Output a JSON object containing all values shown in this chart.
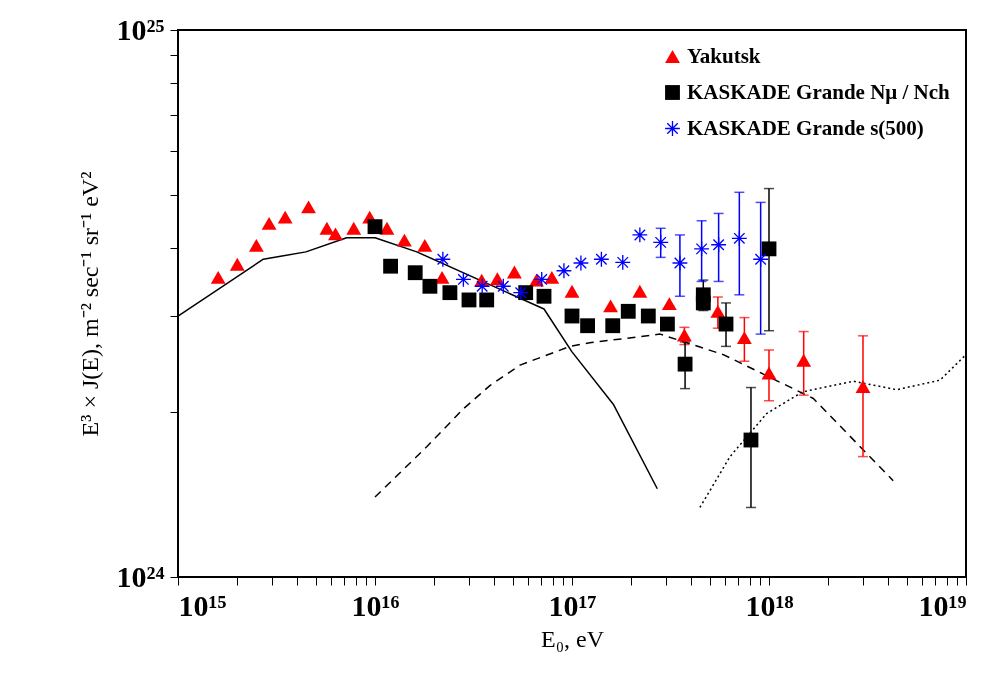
{
  "chart_data": {
    "type": "scatter",
    "xlabel": "E₀,   eV",
    "ylabel": "E³ × J(E),   m⁻² sec⁻¹ sr⁻¹ eV²",
    "log": "xy",
    "grid": false,
    "legend": "top right",
    "xlim": [
      1000000000000000.0,
      1e+19
    ],
    "ylim": [
      1e+24,
      1e+25
    ],
    "xticks": [
      {
        "value": 1000000000000000.0,
        "label": "10¹⁵"
      },
      {
        "value": 2000000000000000.0,
        "label": null
      },
      {
        "value": 3000000000000000.0,
        "label": null
      },
      {
        "value": 4000000000000000.0,
        "label": null
      },
      {
        "value": 5000000000000000.0,
        "label": null
      },
      {
        "value": 6000000000000000.0,
        "label": null
      },
      {
        "value": 7000000000000000.0,
        "label": null
      },
      {
        "value": 8000000000000000.0,
        "label": null
      },
      {
        "value": 9000000000000000.0,
        "label": null
      },
      {
        "value": 1e+16,
        "label": "10¹⁶"
      },
      {
        "value": 2e+16,
        "label": null
      },
      {
        "value": 3e+16,
        "label": null
      },
      {
        "value": 4e+16,
        "label": null
      },
      {
        "value": 5e+16,
        "label": null
      },
      {
        "value": 6e+16,
        "label": null
      },
      {
        "value": 7e+16,
        "label": null
      },
      {
        "value": 8e+16,
        "label": null
      },
      {
        "value": 9e+16,
        "label": null
      },
      {
        "value": 1e+17,
        "label": "10¹⁷"
      },
      {
        "value": 2e+17,
        "label": null
      },
      {
        "value": 3e+17,
        "label": null
      },
      {
        "value": 4e+17,
        "label": null
      },
      {
        "value": 5e+17,
        "label": null
      },
      {
        "value": 6e+17,
        "label": null
      },
      {
        "value": 7e+17,
        "label": null
      },
      {
        "value": 8e+17,
        "label": null
      },
      {
        "value": 9e+17,
        "label": null
      },
      {
        "value": 1e+18,
        "label": "10¹⁸"
      },
      {
        "value": 2e+18,
        "label": null
      },
      {
        "value": 3e+18,
        "label": null
      },
      {
        "value": 4e+18,
        "label": null
      },
      {
        "value": 5e+18,
        "label": null
      },
      {
        "value": 6e+18,
        "label": null
      },
      {
        "value": 7e+18,
        "label": null
      },
      {
        "value": 8e+18,
        "label": null
      },
      {
        "value": 9e+18,
        "label": null
      },
      {
        "value": 1e+19,
        "label": "10¹⁹"
      }
    ],
    "yticks": [
      {
        "value": 1e+24,
        "label": "10²⁴"
      },
      {
        "value": 2e+24,
        "label": null
      },
      {
        "value": 3e+24,
        "label": null
      },
      {
        "value": 4e+24,
        "label": null
      },
      {
        "value": 5e+24,
        "label": null
      },
      {
        "value": 6e+24,
        "label": null
      },
      {
        "value": 7e+24,
        "label": null
      },
      {
        "value": 8e+24,
        "label": null
      },
      {
        "value": 9e+24,
        "label": null
      },
      {
        "value": 1e+25,
        "label": "10²⁵"
      }
    ],
    "series": [
      {
        "type": "line",
        "color": "#000000",
        "line_style": "solid",
        "marker": "none",
        "x": [
          1000000000000000.0,
          2710000000000000.0,
          4460000000000000.0,
          7180000000000000.0,
          1e+16,
          1.63e+16,
          7.21e+16,
          1e+17,
          1.62e+17,
          2.71e+17
        ],
        "values": [
          3e+24,
          3.81e+24,
          3.93e+24,
          4.17e+24,
          4.17e+24,
          3.93e+24,
          3.09e+24,
          2.58e+24,
          2.07e+24,
          1.45e+24
        ]
      },
      {
        "type": "line",
        "color": "#000000",
        "line_style": "dashed",
        "marker": "none",
        "x": [
          1e+16,
          1.83e+16,
          2.81e+16,
          3.84e+16,
          5.45e+16,
          9.78e+16,
          1.23e+17,
          2.8e+17,
          5.86e+17,
          1.68e+18,
          4.27e+18
        ],
        "values": [
          1.4e+24,
          1.73e+24,
          2.03e+24,
          2.24e+24,
          2.44e+24,
          2.64e+24,
          2.68e+24,
          2.78e+24,
          2.55e+24,
          2.12e+24,
          1.5e+24
        ]
      },
      {
        "type": "line",
        "color": "#000000",
        "line_style": "dotted",
        "marker": "none",
        "x": [
          4.46e+17,
          6.34e+17,
          9.73e+17,
          1.48e+18,
          2.68e+18,
          4.45e+18,
          7.38e+18,
          1e+19
        ],
        "values": [
          1.34e+24,
          1.66e+24,
          1.99e+24,
          2.18e+24,
          2.28e+24,
          2.2e+24,
          2.29e+24,
          2.55e+24
        ]
      },
      {
        "name": "Yakutsk",
        "color": "#ff0000",
        "marker": "triangle",
        "x": [
          1600000000000000.0,
          2000000000000000.0,
          2500000000000000.0,
          2900000000000000.0,
          3500000000000000.0,
          4600000000000000.0,
          5700000000000000.0,
          6300000000000000.0,
          7800000000000000.0,
          9400000000000000.0,
          1.15e+16,
          1.41e+16,
          1.79e+16,
          2.19e+16,
          3.48e+16,
          4.18e+16,
          5.1e+16,
          6.6e+16,
          7.9e+16,
          1e+17,
          1.57e+17,
          2.21e+17,
          3.12e+17,
          3.72e+17,
          5.5e+17,
          7.5e+17,
          1e+18,
          1.5e+18,
          3e+18
        ],
        "values": [
          3.53e+24,
          3.73e+24,
          4.04e+24,
          4.43e+24,
          4.55e+24,
          4.75e+24,
          4.34e+24,
          4.24e+24,
          4.34e+24,
          4.55e+24,
          4.34e+24,
          4.13e+24,
          4.04e+24,
          3.53e+24,
          3.49e+24,
          3.51e+24,
          3.61e+24,
          3.49e+24,
          3.53e+24,
          3.33e+24,
          3.13e+24,
          3.33e+24,
          3.16e+24,
          2.77e+24,
          3.06e+24,
          2.74e+24,
          2.36e+24,
          2.49e+24,
          2.23e+24
        ],
        "errors": [
          null,
          null,
          null,
          null,
          null,
          null,
          null,
          null,
          null,
          null,
          null,
          null,
          null,
          null,
          null,
          null,
          null,
          null,
          null,
          null,
          null,
          null,
          null,
          [
            2.66e+24,
            2.86e+24
          ],
          [
            2.85e+24,
            3.25e+24
          ],
          [
            2.48e+24,
            2.98e+24
          ],
          [
            2.1e+24,
            2.6e+24
          ],
          [
            2.15e+24,
            2.81e+24
          ],
          [
            1.66e+24,
            2.76e+24
          ]
        ]
      },
      {
        "name": "KASKADE Grande Nμ / Nch",
        "color": "#000000",
        "marker": "square",
        "x": [
          1e+16,
          1.2e+16,
          1.6e+16,
          1.9e+16,
          2.4e+16,
          3e+16,
          3.69e+16,
          5.82e+16,
          7.21e+16,
          1e+17,
          1.2e+17,
          1.61e+17,
          1.93e+17,
          2.44e+17,
          3.05e+17,
          3.75e+17,
          4.64e+17,
          4.64e+17,
          6.05e+17,
          8.1e+17,
          1e+18
        ],
        "values": [
          4.37e+24,
          3.7e+24,
          3.6e+24,
          3.4e+24,
          3.31e+24,
          3.21e+24,
          3.21e+24,
          3.31e+24,
          3.26e+24,
          3e+24,
          2.88e+24,
          2.88e+24,
          3.06e+24,
          3e+24,
          2.9e+24,
          2.45e+24,
          3.28e+24,
          3.17e+24,
          2.9e+24,
          1.78e+24,
          3.98e+24
        ],
        "errors": [
          null,
          null,
          null,
          null,
          null,
          null,
          null,
          null,
          null,
          null,
          null,
          null,
          null,
          null,
          null,
          [
            2.21e+24,
            2.69e+24
          ],
          [
            3.07e+24,
            3.49e+24
          ],
          null,
          [
            2.64e+24,
            3.17e+24
          ],
          [
            1.34e+24,
            2.22e+24
          ],
          [
            2.82e+24,
            5.13e+24
          ]
        ]
      },
      {
        "name": "KASKADE Grande s(500)",
        "color": "#0000ff",
        "marker": "cross",
        "x": [
          2.21e+16,
          2.81e+16,
          3.5e+16,
          4.48e+16,
          5.49e+16,
          7.02e+16,
          9.1e+16,
          1.11e+17,
          1.41e+17,
          1.81e+17,
          2.21e+17,
          2.82e+17,
          3.53e+17,
          4.55e+17,
          5.55e+17,
          7.07e+17,
          9.07e+17
        ],
        "values": [
          3.81e+24,
          3.5e+24,
          3.4e+24,
          3.4e+24,
          3.31e+24,
          3.5e+24,
          3.63e+24,
          3.75e+24,
          3.81e+24,
          3.76e+24,
          4.22e+24,
          4.09e+24,
          3.75e+24,
          3.98e+24,
          4.05e+24,
          4.16e+24,
          3.81e+24
        ],
        "errors": [
          null,
          null,
          null,
          null,
          null,
          null,
          null,
          null,
          null,
          null,
          null,
          [
            3.84e+24,
            4.34e+24
          ],
          [
            3.26e+24,
            4.22e+24
          ],
          [
            3.47e+24,
            4.48e+24
          ],
          [
            3.47e+24,
            4.62e+24
          ],
          [
            3.28e+24,
            5.05e+24
          ],
          [
            2.78e+24,
            4.84e+24
          ]
        ]
      }
    ]
  }
}
